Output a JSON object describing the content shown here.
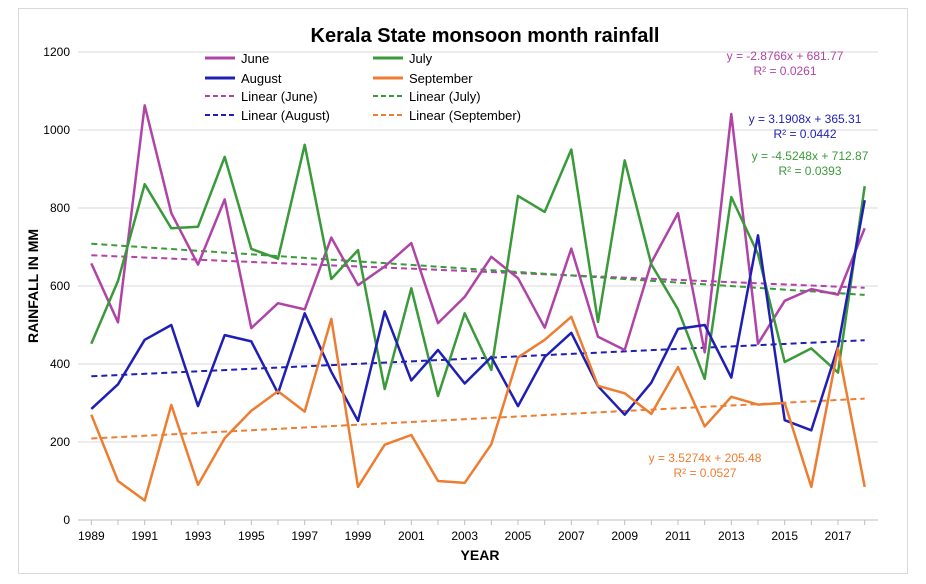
{
  "chart_data": {
    "type": "line",
    "title": "Kerala State monsoon month rainfall",
    "xlabel": "YEAR",
    "ylabel": "RAINFALL IN MM",
    "xlim": [
      1989,
      2018
    ],
    "ylim": [
      0,
      1200
    ],
    "x_ticks": [
      "1989",
      "1991",
      "1993",
      "1995",
      "1997",
      "1999",
      "2001",
      "2003",
      "2005",
      "2007",
      "2009",
      "2011",
      "2013",
      "2015",
      "2017"
    ],
    "y_ticks": [
      "0",
      "200",
      "400",
      "600",
      "800",
      "1000",
      "1200"
    ],
    "x": [
      1989,
      1990,
      1991,
      1992,
      1993,
      1994,
      1995,
      1996,
      1997,
      1998,
      1999,
      2000,
      2001,
      2002,
      2003,
      2004,
      2005,
      2006,
      2007,
      2008,
      2009,
      2010,
      2011,
      2012,
      2013,
      2014,
      2015,
      2016,
      2017,
      2018
    ],
    "series": [
      {
        "name": "June",
        "color": "#b044a6",
        "values": [
          658,
          507,
          1063,
          787,
          655,
          822,
          492,
          556,
          540,
          724,
          602,
          650,
          710,
          505,
          572,
          675,
          620,
          493,
          696,
          470,
          436,
          660,
          787,
          430,
          1041,
          452,
          562,
          592,
          578,
          748
        ]
      },
      {
        "name": "July",
        "color": "#3a9a3a",
        "values": [
          452,
          613,
          861,
          748,
          752,
          931,
          695,
          670,
          962,
          618,
          692,
          336,
          594,
          318,
          530,
          385,
          831,
          790,
          950,
          508,
          922,
          656,
          540,
          362,
          828,
          682,
          405,
          440,
          378,
          856
        ]
      },
      {
        "name": "August",
        "color": "#1f1fb4",
        "values": [
          285,
          348,
          462,
          500,
          292,
          474,
          458,
          325,
          530,
          380,
          254,
          535,
          358,
          436,
          350,
          418,
          292,
          418,
          480,
          343,
          270,
          352,
          490,
          500,
          365,
          730,
          256,
          230,
          444,
          820
        ]
      },
      {
        "name": "September",
        "color": "#ed7d31",
        "values": [
          270,
          100,
          50,
          295,
          90,
          210,
          280,
          330,
          278,
          516,
          85,
          193,
          218,
          100,
          95,
          194,
          417,
          462,
          521,
          344,
          325,
          272,
          392,
          240,
          316,
          296,
          300,
          85,
          440,
          85
        ]
      }
    ],
    "trendlines": [
      {
        "name": "Linear (June)",
        "color": "#b044a6",
        "equation": "y = -2.8766x + 681.77",
        "r2": "R² = 0.0261",
        "start": 678.89,
        "end": 595.47
      },
      {
        "name": "Linear (July)",
        "color": "#3a9a3a",
        "equation": "y = -4.5248x + 712.87",
        "r2": "R² = 0.0393",
        "start": 708.35,
        "end": 577.13
      },
      {
        "name": "Linear (August)",
        "color": "#1f1fb4",
        "equation": "y = 3.1908x + 365.31",
        "r2": "R² = 0.0442",
        "start": 368.5,
        "end": 461.04
      },
      {
        "name": "Linear (September)",
        "color": "#ed7d31",
        "equation": "y = 3.5274x + 205.48",
        "r2": "R² = 0.0527",
        "start": 209.01,
        "end": 311.3
      }
    ],
    "legend": [
      "June",
      "July",
      "August",
      "September",
      "Linear (June)",
      "Linear (July)",
      "Linear (August)",
      "Linear (September)"
    ],
    "legend_position": "top-center",
    "grid": true
  }
}
